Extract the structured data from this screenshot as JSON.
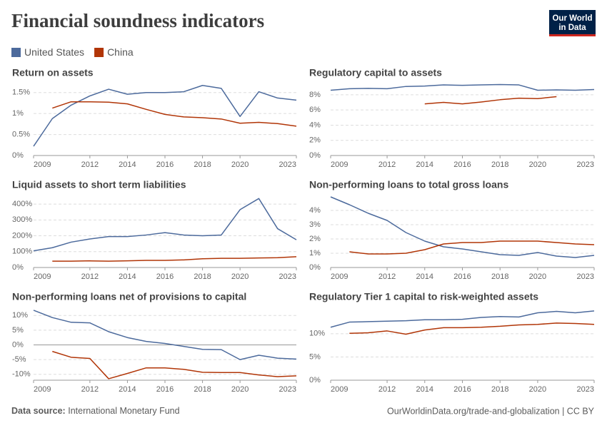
{
  "title": "Financial soundness indicators",
  "logo": [
    "Our World",
    "in Data"
  ],
  "source": {
    "label": "Data source:",
    "text": "International Monetary Fund"
  },
  "credit": "OurWorldinData.org/trade-and-globalization | CC BY",
  "chart_data": [
    {
      "type": "line",
      "title": "Return on assets",
      "grid": true,
      "x": [
        2009,
        2010,
        2011,
        2012,
        2013,
        2014,
        2015,
        2016,
        2017,
        2018,
        2019,
        2020,
        2021,
        2022,
        2023
      ],
      "xlim": [
        2009,
        2023
      ],
      "xticks": [
        2009,
        2012,
        2014,
        2016,
        2018,
        2020,
        2023
      ],
      "ylim": [
        0,
        1.7
      ],
      "yticks": [
        {
          "value": 0,
          "label": "0%"
        },
        {
          "value": 0.5,
          "label": "0.5%"
        },
        {
          "value": 1,
          "label": "1%"
        },
        {
          "value": 1.5,
          "label": "1.5%"
        }
      ],
      "series": [
        {
          "name": "United States",
          "color": "#4c6a9c",
          "values": [
            0.22,
            0.88,
            1.2,
            1.42,
            1.58,
            1.46,
            1.5,
            1.5,
            1.52,
            1.67,
            1.6,
            0.93,
            1.52,
            1.37,
            1.32
          ]
        },
        {
          "name": "China",
          "color": "#b13507",
          "values": [
            null,
            1.13,
            1.28,
            1.28,
            1.27,
            1.23,
            1.1,
            0.98,
            0.92,
            0.9,
            0.87,
            0.77,
            0.79,
            0.76,
            0.7
          ]
        }
      ]
    },
    {
      "type": "line",
      "title": "Regulatory capital to assets",
      "grid": true,
      "x": [
        2009,
        2010,
        2011,
        2012,
        2013,
        2014,
        2015,
        2016,
        2017,
        2018,
        2019,
        2020,
        2021,
        2022,
        2023
      ],
      "xlim": [
        2009,
        2023
      ],
      "xticks": [
        2009,
        2012,
        2014,
        2016,
        2018,
        2020,
        2023
      ],
      "ylim": [
        0,
        9.4
      ],
      "yticks": [
        {
          "value": 0,
          "label": "0%"
        },
        {
          "value": 2,
          "label": "2%"
        },
        {
          "value": 4,
          "label": "4%"
        },
        {
          "value": 6,
          "label": "6%"
        },
        {
          "value": 8,
          "label": "8%"
        }
      ],
      "series": [
        {
          "color": "#4c6a9c",
          "values": [
            8.6,
            8.8,
            8.85,
            8.8,
            9.1,
            9.15,
            9.3,
            9.25,
            9.3,
            9.35,
            9.3,
            8.6,
            8.65,
            8.6,
            8.7
          ]
        },
        {
          "color": "#b13507",
          "values": [
            null,
            null,
            null,
            null,
            null,
            6.8,
            7.0,
            6.8,
            7.05,
            7.35,
            7.55,
            7.5,
            7.75,
            null,
            null
          ]
        }
      ]
    },
    {
      "type": "line",
      "title": "Liquid assets to short term liabilities",
      "grid": true,
      "x": [
        2009,
        2010,
        2011,
        2012,
        2013,
        2014,
        2015,
        2016,
        2017,
        2018,
        2019,
        2020,
        2021,
        2022,
        2023
      ],
      "xlim": [
        2009,
        2023
      ],
      "xticks": [
        2009,
        2012,
        2014,
        2016,
        2018,
        2020,
        2023
      ],
      "ylim": [
        0,
        450
      ],
      "yticks": [
        {
          "value": 0,
          "label": "0%"
        },
        {
          "value": 100,
          "label": "100%"
        },
        {
          "value": 200,
          "label": "200%"
        },
        {
          "value": 300,
          "label": "300%"
        },
        {
          "value": 400,
          "label": "400%"
        }
      ],
      "series": [
        {
          "color": "#4c6a9c",
          "values": [
            105,
            125,
            160,
            180,
            195,
            195,
            205,
            220,
            205,
            200,
            205,
            365,
            435,
            245,
            175
          ]
        },
        {
          "color": "#b13507",
          "values": [
            null,
            40,
            40,
            42,
            40,
            42,
            45,
            45,
            48,
            55,
            58,
            58,
            60,
            62,
            68
          ]
        }
      ]
    },
    {
      "type": "line",
      "title": "Non-performing loans to total gross loans",
      "grid": true,
      "x": [
        2009,
        2010,
        2011,
        2012,
        2013,
        2014,
        2015,
        2016,
        2017,
        2018,
        2019,
        2020,
        2021,
        2022,
        2023
      ],
      "xlim": [
        2009,
        2023
      ],
      "xticks": [
        2009,
        2012,
        2014,
        2016,
        2018,
        2020,
        2023
      ],
      "ylim": [
        0,
        5
      ],
      "yticks": [
        {
          "value": 0,
          "label": "0%"
        },
        {
          "value": 1,
          "label": "1%"
        },
        {
          "value": 2,
          "label": "2%"
        },
        {
          "value": 3,
          "label": "3%"
        },
        {
          "value": 4,
          "label": "4%"
        }
      ],
      "series": [
        {
          "color": "#4c6a9c",
          "values": [
            4.95,
            4.4,
            3.8,
            3.3,
            2.45,
            1.85,
            1.45,
            1.3,
            1.1,
            0.9,
            0.85,
            1.05,
            0.8,
            0.7,
            0.85
          ]
        },
        {
          "color": "#b13507",
          "values": [
            null,
            1.1,
            0.95,
            0.95,
            1.0,
            1.25,
            1.65,
            1.75,
            1.75,
            1.85,
            1.85,
            1.85,
            1.75,
            1.65,
            1.6
          ]
        }
      ]
    },
    {
      "type": "line",
      "title": "Non-performing loans net of provisions to capital",
      "grid": true,
      "x": [
        2009,
        2010,
        2011,
        2012,
        2013,
        2014,
        2015,
        2016,
        2017,
        2018,
        2019,
        2020,
        2021,
        2022,
        2023
      ],
      "xlim": [
        2009,
        2023
      ],
      "xticks": [
        2009,
        2012,
        2014,
        2016,
        2018,
        2020,
        2023
      ],
      "ylim": [
        -12,
        12.5
      ],
      "yticks": [
        {
          "value": -10,
          "label": "-10%"
        },
        {
          "value": -5,
          "label": "-5%"
        },
        {
          "value": 0,
          "label": "0%"
        },
        {
          "value": 5,
          "label": "5%"
        },
        {
          "value": 10,
          "label": "10%"
        }
      ],
      "series": [
        {
          "color": "#4c6a9c",
          "values": [
            11.8,
            9.3,
            7.7,
            7.5,
            4.5,
            2.5,
            1.2,
            0.5,
            -0.5,
            -1.5,
            -1.6,
            -5,
            -3.5,
            -4.5,
            -4.8
          ]
        },
        {
          "color": "#b13507",
          "values": [
            null,
            -2.2,
            -4.2,
            -4.6,
            -11.5,
            -9.7,
            -7.8,
            -7.8,
            -8.3,
            -9.3,
            -9.4,
            -9.4,
            -10.2,
            -10.8,
            -10.5
          ]
        }
      ]
    },
    {
      "type": "line",
      "title": "Regulatory Tier 1 capital to risk-weighted assets",
      "grid": true,
      "x": [
        2009,
        2010,
        2011,
        2012,
        2013,
        2014,
        2015,
        2016,
        2017,
        2018,
        2019,
        2020,
        2021,
        2022,
        2023
      ],
      "xlim": [
        2009,
        2023
      ],
      "xticks": [
        2009,
        2012,
        2014,
        2016,
        2018,
        2020,
        2023
      ],
      "ylim": [
        0,
        15.5
      ],
      "yticks": [
        {
          "value": 0,
          "label": "0%"
        },
        {
          "value": 5,
          "label": "5%"
        },
        {
          "value": 10,
          "label": "10%"
        }
      ],
      "series": [
        {
          "color": "#4c6a9c",
          "values": [
            11.4,
            12.5,
            12.6,
            12.7,
            12.8,
            13.0,
            13.0,
            13.1,
            13.5,
            13.7,
            13.6,
            14.5,
            14.8,
            14.5,
            14.9
          ]
        },
        {
          "color": "#b13507",
          "values": [
            null,
            10.1,
            10.2,
            10.6,
            9.9,
            10.8,
            11.3,
            11.3,
            11.4,
            11.6,
            11.9,
            12.0,
            12.3,
            12.2,
            12.0
          ]
        }
      ]
    }
  ]
}
